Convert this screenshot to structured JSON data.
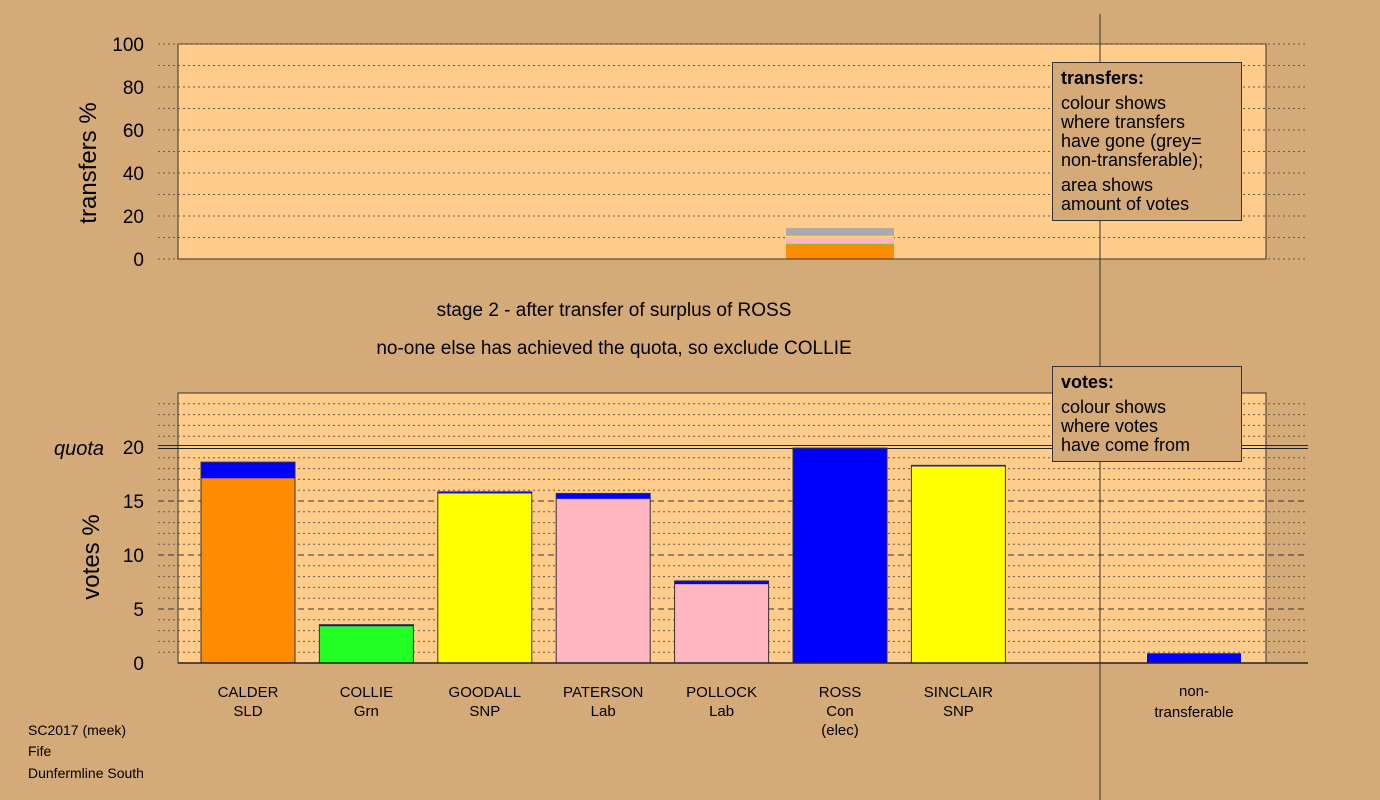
{
  "chart_data": [
    {
      "type": "bar",
      "subtype": "stacked",
      "name": "transfers",
      "ylabel": "transfers %",
      "ylim": [
        0,
        100
      ],
      "yticks": [
        0,
        20,
        40,
        60,
        80,
        100
      ],
      "bar_candidate": "ROSS",
      "segments": [
        {
          "colour": "#ff8c00",
          "value": 6.8
        },
        {
          "colour": "#22dd22",
          "value": 0.3
        },
        {
          "colour": "#ffb6c1",
          "value": 3.4
        },
        {
          "colour": "#ffff00",
          "value": 0.3
        },
        {
          "colour": "#aaaaaa",
          "value": 3.6
        }
      ],
      "legend": {
        "title": "transfers:",
        "paragraphs": [
          "colour shows\nwhere transfers\nhave gone (grey=\nnon-transferable);",
          "area shows\namount of votes"
        ]
      }
    },
    {
      "type": "bar",
      "subtype": "stacked",
      "name": "votes",
      "ylabel": "votes %",
      "ylim": [
        0,
        25
      ],
      "yticks": [
        0,
        5,
        10,
        15,
        20
      ],
      "quota": 20,
      "quota_label": "quota",
      "categories": [
        {
          "lines": [
            "CALDER",
            "SLD"
          ],
          "segments": [
            {
              "colour": "#ff8c00",
              "value": 17.1
            },
            {
              "colour": "#0000ff",
              "value": 1.5
            }
          ]
        },
        {
          "lines": [
            "COLLIE",
            "Grn"
          ],
          "segments": [
            {
              "colour": "#22ff22",
              "value": 3.4
            },
            {
              "colour": "#0000ff",
              "value": 0.15
            }
          ]
        },
        {
          "lines": [
            "GOODALL",
            "SNP"
          ],
          "segments": [
            {
              "colour": "#ffff00",
              "value": 15.7
            },
            {
              "colour": "#0000ff",
              "value": 0.15
            }
          ]
        },
        {
          "lines": [
            "PATERSON",
            "Lab"
          ],
          "segments": [
            {
              "colour": "#ffb6c1",
              "value": 15.2
            },
            {
              "colour": "#0000ff",
              "value": 0.5
            }
          ]
        },
        {
          "lines": [
            "POLLOCK",
            "Lab"
          ],
          "segments": [
            {
              "colour": "#ffb6c1",
              "value": 7.3
            },
            {
              "colour": "#0000ff",
              "value": 0.3
            }
          ]
        },
        {
          "lines": [
            "ROSS",
            "Con",
            "(elec)"
          ],
          "segments": [
            {
              "colour": "#0000ff",
              "value": 19.9
            }
          ]
        },
        {
          "lines": [
            "SINCLAIR",
            "SNP"
          ],
          "segments": [
            {
              "colour": "#ffff00",
              "value": 18.2
            },
            {
              "colour": "#0000ff",
              "value": 0.1
            }
          ]
        }
      ],
      "non_transferable": {
        "lines": [
          "non-",
          "transferable"
        ],
        "segments": [
          {
            "colour": "#0000ff",
            "value": 0.9
          }
        ]
      },
      "legend": {
        "title": "votes:",
        "paragraphs": [
          "colour shows\nwhere votes\nhave come from"
        ]
      }
    }
  ],
  "stage_title": "stage 2 - after transfer of surplus of ROSS",
  "stage_subtitle": "no-one else has achieved the quota, so exclude COLLIE",
  "footer": [
    "SC2017 (meek)",
    "Fife",
    "Dunfermline South"
  ],
  "colors": {
    "background": "#d4aa78",
    "plot_bg": "#ffcc8b"
  }
}
